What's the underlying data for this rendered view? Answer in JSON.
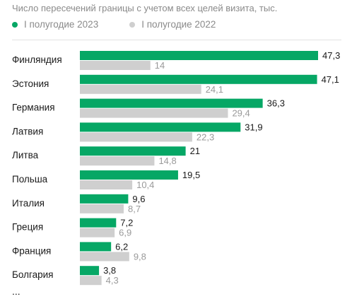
{
  "colors": {
    "series2023": "#06a765",
    "series2022": "#cfcfcf",
    "value2023": "#1a1a1a",
    "value2022": "#9a9a9a"
  },
  "chart_data": {
    "type": "bar",
    "orientation": "horizontal",
    "title": "",
    "subtitle": "Число пересечений границы с учетом всех целей визита, тыс.",
    "categories": [
      "Финляндия",
      "Эстония",
      "Германия",
      "Латвия",
      "Литва",
      "Польша",
      "Италия",
      "Греция",
      "Франция",
      "Болгария"
    ],
    "series": [
      {
        "name": "I полугодие 2023",
        "values": [
          47.3,
          47.1,
          36.3,
          31.9,
          21,
          19.5,
          9.6,
          7.2,
          6.2,
          3.8
        ],
        "labels": [
          "47,3",
          "47,1",
          "36,3",
          "31,9",
          "21",
          "19,5",
          "9,6",
          "7,2",
          "6,2",
          "3,8"
        ]
      },
      {
        "name": "I полугодие 2022",
        "values": [
          14,
          24.1,
          29.4,
          22.3,
          14.8,
          10.4,
          8.7,
          6.9,
          9.8,
          4.3
        ],
        "labels": [
          "14",
          "24,1",
          "29,4",
          "22,3",
          "14,8",
          "10,4",
          "8,7",
          "6,9",
          "9,8",
          "4,3"
        ]
      }
    ],
    "xlim": [
      0,
      47.3
    ],
    "legend": "top-left",
    "grid": false,
    "ellipsis": "..."
  }
}
